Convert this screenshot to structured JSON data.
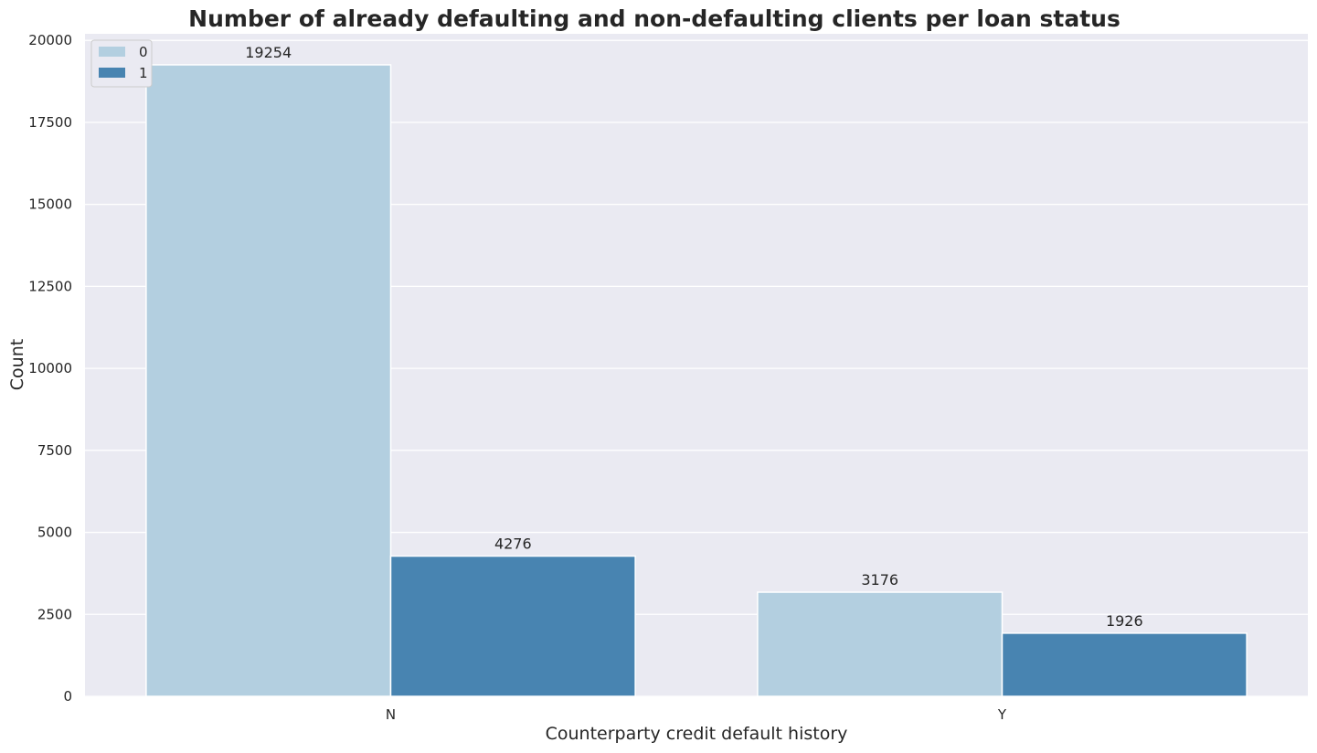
{
  "chart_data": {
    "type": "bar",
    "title": "Number of already defaulting and non-defaulting clients per loan status",
    "xlabel": "Counterparty credit default history",
    "ylabel": "Count",
    "categories": [
      "N",
      "Y"
    ],
    "series": [
      {
        "name": "0",
        "values": [
          19254,
          3176
        ],
        "color": "#b3cfe0"
      },
      {
        "name": "1",
        "values": [
          4276,
          1926
        ],
        "color": "#4884b1"
      }
    ],
    "ylim": [
      0,
      20000
    ],
    "yticks": [
      0,
      2500,
      5000,
      7500,
      10000,
      12500,
      15000,
      17500,
      20000
    ],
    "grid": true,
    "legend_position": "top-left",
    "background_color": "#eaeaf2",
    "grid_color": "#ffffff"
  }
}
